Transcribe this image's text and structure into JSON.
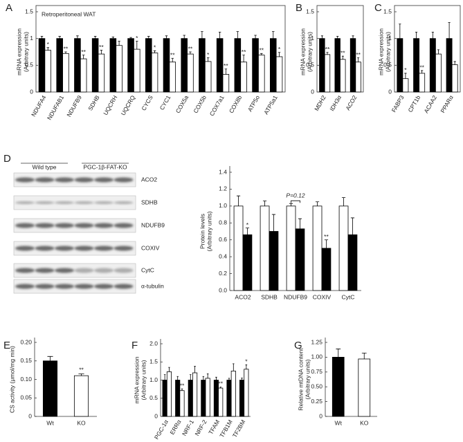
{
  "chart_data": [
    {
      "type": "bar",
      "panel": "A",
      "title": "Retroperitoneal WAT",
      "ylabel": [
        "mRNA expression",
        "(Arbitrary units)"
      ],
      "categories": [
        "NDUFA4",
        "NDUFAB1",
        "NDUFB9",
        "SDHB",
        "UQCRH",
        "UQCRQ",
        "CYCS",
        "CYC1",
        "COX5a",
        "COX5b",
        "COX7a1",
        "COX8b",
        "ATP5o",
        "ATP5a1"
      ],
      "ylim": [
        0,
        1.5
      ],
      "yticks": [
        0,
        0.5,
        1,
        1.5
      ],
      "series": [
        {
          "color": "#000000",
          "values": [
            1,
            1,
            1,
            1,
            1,
            1,
            1,
            1,
            1,
            1,
            1,
            1,
            1,
            1
          ],
          "errors": [
            0.04,
            0.04,
            0.05,
            0.04,
            0.03,
            0.02,
            0.04,
            0.05,
            0.06,
            0.13,
            0.12,
            0.13,
            0.06,
            0.13
          ]
        },
        {
          "color": "#ffffff",
          "values": [
            0.78,
            0.72,
            0.62,
            0.71,
            0.87,
            0.8,
            0.73,
            0.56,
            0.71,
            0.57,
            0.33,
            0.56,
            0.69,
            0.66
          ],
          "errors": [
            0.05,
            0.03,
            0.07,
            0.07,
            0.08,
            0.15,
            0.04,
            0.07,
            0.04,
            0.07,
            0.1,
            0.13,
            0.03,
            0.08
          ],
          "stars": [
            "*",
            "**",
            "**",
            "**",
            null,
            "*",
            "*",
            "**",
            "**",
            "*",
            "**",
            "**",
            "**",
            "*"
          ]
        }
      ]
    },
    {
      "type": "bar",
      "panel": "B",
      "ylabel": [
        "mRNA expression",
        "(Arbitrary units)"
      ],
      "categories": [
        "MDH2",
        "IDH3α",
        "ACO2"
      ],
      "ylim": [
        0,
        1.5
      ],
      "yticks": [
        0,
        0.5,
        1,
        1.5
      ],
      "series": [
        {
          "color": "#000000",
          "values": [
            1,
            1,
            1
          ],
          "errors": [
            0.05,
            0.04,
            0.05
          ]
        },
        {
          "color": "#ffffff",
          "values": [
            0.7,
            0.61,
            0.56
          ],
          "errors": [
            0.04,
            0.06,
            0.08
          ],
          "stars": [
            "**",
            "**",
            "**"
          ]
        }
      ]
    },
    {
      "type": "bar",
      "panel": "C",
      "ylabel": [
        "mRNA expression",
        "(Arbitrary units)"
      ],
      "categories": [
        "FABP3",
        "CPT1b",
        "ACAA2",
        "PPARα"
      ],
      "ylim": [
        0,
        1.5
      ],
      "yticks": [
        0,
        0.5,
        1,
        1.5
      ],
      "series": [
        {
          "color": "#000000",
          "values": [
            1,
            1,
            1,
            1
          ],
          "errors": [
            0.27,
            0.12,
            0.12,
            0.3
          ]
        },
        {
          "color": "#ffffff",
          "values": [
            0.25,
            0.35,
            0.71,
            0.51
          ],
          "errors": [
            0.1,
            0.05,
            0.08,
            0.06
          ],
          "stars": [
            "*",
            "**",
            null,
            null
          ]
        }
      ]
    },
    {
      "type": "bar",
      "panel": "D",
      "ylabel": [
        "Protein levels",
        "(Arbitrary units)"
      ],
      "annotation": "P=0.12",
      "annotation_category": 2,
      "categories": [
        "ACO2",
        "SDHB",
        "NDUFB9",
        "COXIV",
        "CytC"
      ],
      "ylim": [
        0,
        1.4
      ],
      "yticks": [
        {
          "value": 0,
          "label": "0.0"
        },
        0.2,
        0.4,
        0.6,
        0.8,
        {
          "value": 1,
          "label": "1.0"
        },
        1.2,
        1.4
      ],
      "series": [
        {
          "color": "#ffffff",
          "values": [
            1,
            1,
            1,
            1,
            1
          ],
          "errors": [
            0.12,
            0.06,
            0.03,
            0.05,
            0.1
          ]
        },
        {
          "color": "#000000",
          "values": [
            0.66,
            0.7,
            0.73,
            0.5,
            0.66
          ],
          "errors": [
            0.08,
            0.2,
            0.12,
            0.1,
            0.2
          ],
          "stars": [
            "*",
            null,
            null,
            "**",
            null
          ]
        }
      ]
    },
    {
      "type": "bar",
      "panel": "E",
      "ylabel": [
        "CS activity  (μmol/mg min)"
      ],
      "categories": [
        "Wt",
        "KO"
      ],
      "ylim": [
        0,
        0.2
      ],
      "yticks": [
        0,
        0.05,
        {
          "value": 0.1,
          "label": "0.10"
        },
        0.15,
        {
          "value": 0.2,
          "label": "0.20"
        }
      ],
      "values": [
        0.15,
        0.11
      ],
      "errors": [
        0.012,
        0.005
      ],
      "colors": [
        "#000000",
        "#ffffff"
      ],
      "stars": [
        null,
        "**"
      ]
    },
    {
      "type": "bar",
      "panel": "F",
      "ylabel": [
        "mRNA expression",
        "(Arbitrary units)"
      ],
      "categories": [
        "PGC-1α",
        "ERRα",
        "NRF-1",
        "NRF-2",
        "TFAM",
        "TFB1M",
        "TF2BM"
      ],
      "ylim": [
        0,
        2
      ],
      "yticks": [
        0,
        0.5,
        {
          "value": 1,
          "label": "1.0"
        },
        1.5,
        {
          "value": 2,
          "label": "2.0"
        }
      ],
      "series": [
        {
          "color": "#000000",
          "values": [
            1,
            1,
            1,
            1,
            1,
            1,
            1
          ],
          "errors": [
            0.15,
            0.1,
            0.15,
            0.1,
            0.08,
            0.05,
            0.06
          ]
        },
        {
          "color": "#ffffff",
          "values": [
            1.23,
            0.71,
            1.2,
            1.05,
            0.78,
            1.25,
            1.3
          ],
          "errors": [
            0.12,
            0.05,
            0.18,
            0.12,
            0.03,
            0.2,
            0.12
          ],
          "stars": [
            null,
            "**",
            null,
            null,
            "**",
            null,
            "*"
          ]
        }
      ]
    },
    {
      "type": "bar",
      "panel": "G",
      "ylabel": [
        "Relative mtDNA content",
        "(Arbitrary units)"
      ],
      "categories": [
        "Wt",
        "KO"
      ],
      "ylim": [
        0,
        1.25
      ],
      "yticks": [
        0,
        0.25,
        {
          "value": 0.5,
          "label": "0.50"
        },
        0.75,
        {
          "value": 1,
          "label": "1.00"
        },
        1.25
      ],
      "values": [
        1,
        0.97
      ],
      "errors": [
        0.14,
        0.1
      ],
      "colors": [
        "#000000",
        "#ffffff"
      ],
      "stars": [
        null,
        null
      ]
    }
  ],
  "blot": {
    "groups": [
      "Wild type",
      "PGC-1β-FAT-KO"
    ],
    "bands": [
      "ACO2",
      "SDHB",
      "NDUFB9",
      "COXIV",
      "CytC",
      "α-tubulin"
    ]
  }
}
